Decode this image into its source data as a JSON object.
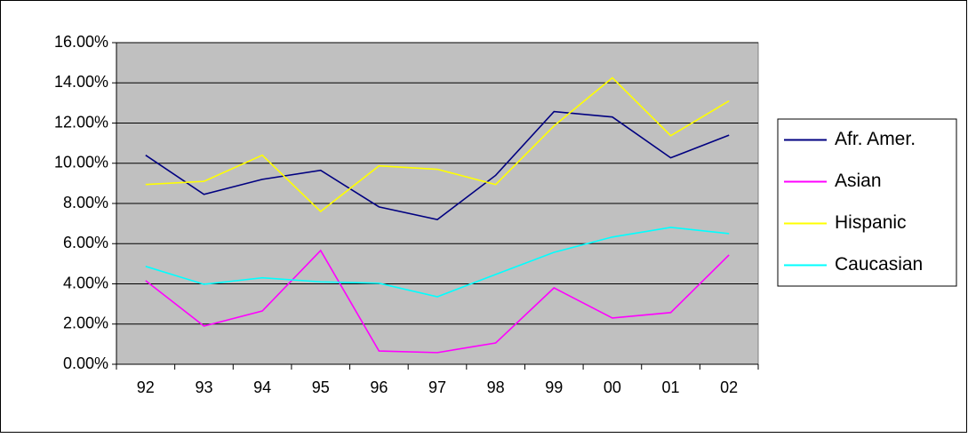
{
  "chart_data": {
    "type": "line",
    "categories": [
      "92",
      "93",
      "94",
      "95",
      "96",
      "97",
      "98",
      "99",
      "00",
      "01",
      "02"
    ],
    "series": [
      {
        "name": "Afr. Amer.",
        "color": "#000080",
        "values": [
          10.4,
          8.45,
          9.2,
          9.65,
          7.83,
          7.2,
          9.4,
          12.57,
          12.3,
          10.27,
          11.4
        ]
      },
      {
        "name": "Asian",
        "color": "#ff00ff",
        "values": [
          4.16,
          1.9,
          2.65,
          5.66,
          0.66,
          0.58,
          1.06,
          3.8,
          2.3,
          2.57,
          5.44
        ]
      },
      {
        "name": "Hispanic",
        "color": "#ffff00",
        "values": [
          8.94,
          9.1,
          10.4,
          7.6,
          9.87,
          9.7,
          8.94,
          11.86,
          14.25,
          11.37,
          13.1
        ]
      },
      {
        "name": "Caucasian",
        "color": "#00ffff",
        "values": [
          4.87,
          3.98,
          4.3,
          4.1,
          4.03,
          3.36,
          4.47,
          5.57,
          6.33,
          6.81,
          6.5
        ]
      }
    ],
    "ylim": [
      0,
      16
    ],
    "yticks": [
      {
        "value": 0,
        "label": "0.00%"
      },
      {
        "value": 2,
        "label": "2.00%"
      },
      {
        "value": 4,
        "label": "4.00%"
      },
      {
        "value": 6,
        "label": "6.00%"
      },
      {
        "value": 8,
        "label": "8.00%"
      },
      {
        "value": 10,
        "label": "10.00%"
      },
      {
        "value": 12,
        "label": "12.00%"
      },
      {
        "value": 14,
        "label": "14.00%"
      },
      {
        "value": 16,
        "label": "16.00%"
      }
    ],
    "grid": true,
    "plot_background": "#c0c0c0",
    "legend": "right"
  }
}
